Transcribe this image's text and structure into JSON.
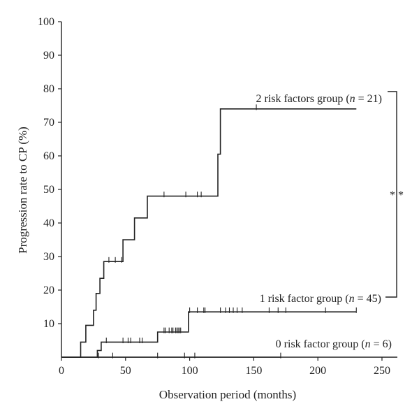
{
  "chart_data": {
    "type": "line",
    "subtype": "kaplan-meier-step",
    "xlabel": "Observation period (months)",
    "ylabel": "Progression rate to CP (%)",
    "xlim": [
      0,
      262
    ],
    "ylim": [
      0,
      100
    ],
    "xticks": [
      0,
      50,
      100,
      150,
      200,
      250
    ],
    "yticks": [
      10,
      20,
      30,
      40,
      50,
      60,
      70,
      80,
      90,
      100
    ],
    "series": [
      {
        "annotation": [
          "2 risk factors group (",
          "n",
          " = 21)"
        ],
        "steps": [
          [
            0,
            0
          ],
          [
            15,
            0
          ],
          [
            15,
            4.5
          ],
          [
            19,
            4.5
          ],
          [
            19,
            9.5
          ],
          [
            25,
            9.5
          ],
          [
            25,
            14
          ],
          [
            27,
            14
          ],
          [
            27,
            19
          ],
          [
            30,
            19
          ],
          [
            30,
            23.5
          ],
          [
            33,
            23.5
          ],
          [
            33,
            28.5
          ],
          [
            48,
            28.5
          ],
          [
            48,
            35
          ],
          [
            57,
            35
          ],
          [
            57,
            41.5
          ],
          [
            67,
            41.5
          ],
          [
            67,
            48
          ],
          [
            122,
            48
          ],
          [
            122,
            60.5
          ],
          [
            124,
            60.5
          ],
          [
            124,
            74
          ],
          [
            230,
            74
          ]
        ],
        "censored": [
          [
            37,
            29
          ],
          [
            42,
            29
          ],
          [
            47,
            29
          ],
          [
            80,
            48.5
          ],
          [
            97,
            48.5
          ],
          [
            106,
            48.5
          ],
          [
            109,
            48.5
          ],
          [
            152,
            74.5
          ]
        ]
      },
      {
        "annotation": [
          "1 risk factor group (",
          "n",
          " = 45)"
        ],
        "steps": [
          [
            0,
            0
          ],
          [
            28,
            0
          ],
          [
            28,
            2
          ],
          [
            31,
            2
          ],
          [
            31,
            4.5
          ],
          [
            75,
            4.5
          ],
          [
            75,
            7.5
          ],
          [
            99,
            7.5
          ],
          [
            99,
            13.5
          ],
          [
            230,
            13.5
          ]
        ],
        "censored": [
          [
            35,
            5
          ],
          [
            48,
            5
          ],
          [
            52,
            5
          ],
          [
            54,
            5
          ],
          [
            61,
            5
          ],
          [
            63,
            5
          ],
          [
            80,
            8
          ],
          [
            81,
            8
          ],
          [
            84,
            8
          ],
          [
            86,
            8
          ],
          [
            87,
            8
          ],
          [
            89,
            8
          ],
          [
            90,
            8
          ],
          [
            91,
            8
          ],
          [
            92,
            8
          ],
          [
            93,
            8
          ],
          [
            100,
            14
          ],
          [
            106,
            14
          ],
          [
            111,
            14
          ],
          [
            112,
            14
          ],
          [
            124,
            14
          ],
          [
            128,
            14
          ],
          [
            131,
            14
          ],
          [
            134,
            14
          ],
          [
            137,
            14
          ],
          [
            141,
            14
          ],
          [
            162,
            14
          ],
          [
            169,
            14
          ],
          [
            175,
            14
          ],
          [
            206,
            14
          ],
          [
            230,
            14
          ]
        ]
      },
      {
        "annotation": [
          "0 risk factor group (",
          "n",
          " = 6)"
        ],
        "steps": [
          [
            0,
            0
          ],
          [
            171,
            0
          ]
        ],
        "censored": [
          [
            29,
            0.5
          ],
          [
            40,
            0.5
          ],
          [
            75,
            0.5
          ],
          [
            96,
            0.5
          ],
          [
            104,
            0.5
          ],
          [
            171,
            0.5
          ]
        ]
      }
    ],
    "significance": "* *"
  }
}
